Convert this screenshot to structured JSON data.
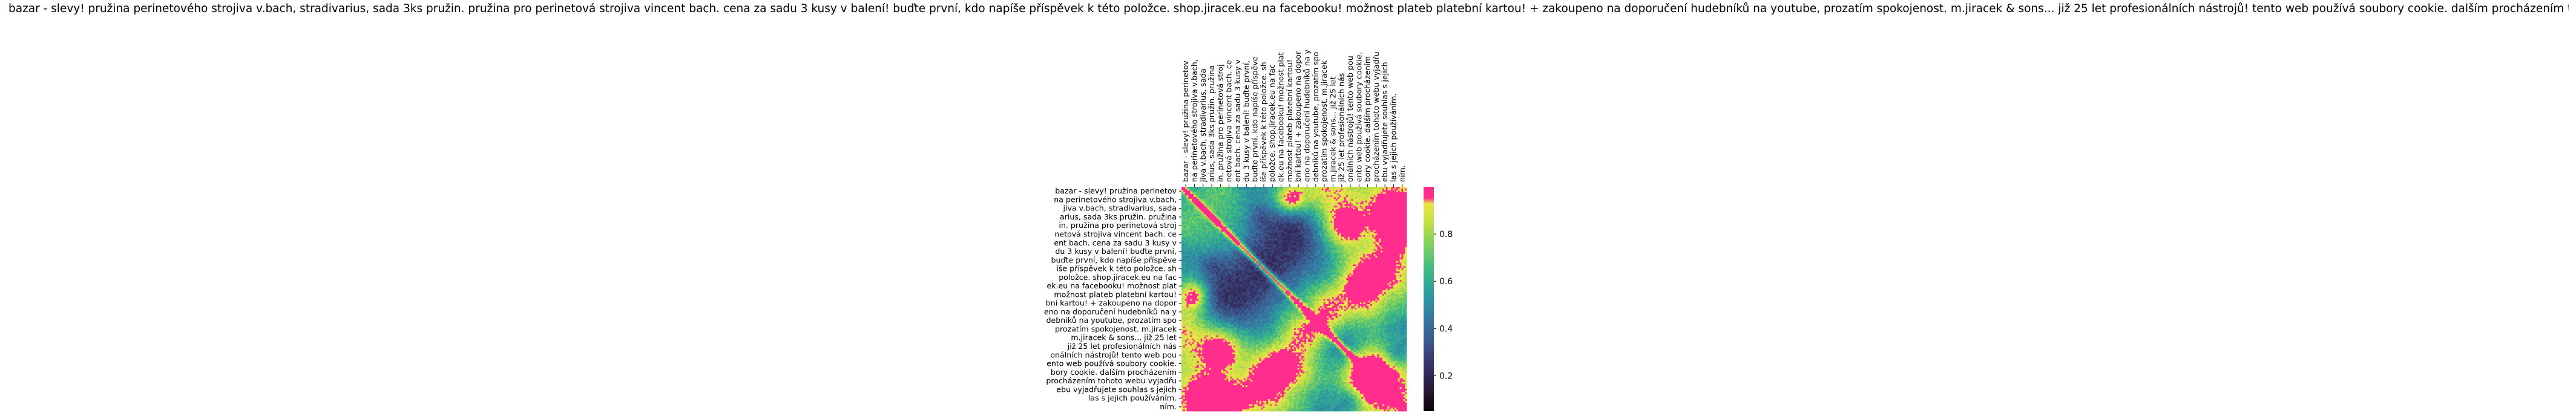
{
  "chart_data": {
    "type": "heatmap",
    "title": "bazar - slevy! pružina perinetového strojiva v.bach, stradivarius, sada 3ks pružin. pružina pro perinetová strojiva vincent bach. cena za sadu 3 kusy v balení! buďte první, kdo napíše příspěvek k této položce. shop.jiracek.eu na facebooku! možnost plateb platební kartou! + zakoupeno na doporučení hudebníků na youtube, prozatím spokojenost. m.jiracek & sons... již 25 let profesionálních nástrojů! tento web používá soubory cookie. dalším procházením tohoto webu vyjadřujete souhlas s jejich používáním.",
    "y_labels": [
      "bazar - slevy! pružina perinetov",
      "na perinetového strojiva v.bach,",
      "jiva v.bach, stradivarius, sada",
      "arius, sada 3ks pružin. pružina",
      "in. pružina pro perinetová stroj",
      "netová strojiva vincent bach. ce",
      "ent bach. cena za sadu 3 kusy v",
      "du 3 kusy v balení! buďte první,",
      "buďte první, kdo napíše příspěve",
      "íše příspěvek k této položce. sh",
      "položce. shop.jiracek.eu na fac",
      "ek.eu na facebooku! možnost plat",
      "možnost plateb platební kartou!",
      "bní kartou! + zakoupeno na dopor",
      "eno na doporučení hudebníků na y",
      "debníků na youtube, prozatím spo",
      "prozatím spokojenost. m.jiracek",
      "m.jiracek & sons... již 25 let",
      "již 25 let profesionálních nás",
      "onálních nástrojů! tento web pou",
      "ento web používá soubory cookie.",
      "bory cookie. dalším procházením",
      "procházením tohoto webu vyjadřu",
      "ebu vyjadřujete souhlas s jejich",
      "las s jejich používáním.",
      "ním."
    ],
    "x_labels": [
      "bazar - slevy! pružina perinetov",
      "na perinetového strojiva v.bach,",
      "jiva v.bach, stradivarius, sada",
      "arius, sada 3ks pružin. pružina",
      "in. pružina pro perinetová stroj",
      "netová strojiva vincent bach. ce",
      "ent bach. cena za sadu 3 kusy v",
      "du 3 kusy v balení! buďte první,",
      "buďte první, kdo napíše příspěve",
      "íše příspěvek k této položce. sh",
      "položce. shop.jiracek.eu na fac",
      "ek.eu na facebooku! možnost plat",
      "možnost plateb platební kartou!",
      "bní kartou! + zakoupeno na dopor",
      "eno na doporučení hudebníků na y",
      "debníků na youtube, prozatím spo",
      "prozatím spokojenost. m.jiracek",
      "m.jiracek & sons... již 25 let",
      "již 25 let profesionálních nás",
      "onálních nástrojů! tento web pou",
      "ento web používá soubory cookie.",
      "bory cookie. dalším procházením",
      "procházením tohoto webu vyjadřu",
      "ebu vyjadřujete souhlas s jejich",
      "las s jejich používáním.",
      "ním."
    ],
    "cells_per_token": 5,
    "color_range": [
      0.05,
      1.0
    ],
    "colorbar_ticks": [
      0.2,
      0.4,
      0.6,
      0.8
    ],
    "colormap": [
      "#0b0405",
      "#2b1d3f",
      "#38336a",
      "#3b5a8e",
      "#357ba2",
      "#2c9c9f",
      "#3fba83",
      "#7cd05f",
      "#c5e045",
      "#f5e24b",
      "#ff2d8e"
    ],
    "values_note": "fine-grained similarity grid: bright diagonal band ~1.0, surrounding structure 0.1–0.9"
  }
}
